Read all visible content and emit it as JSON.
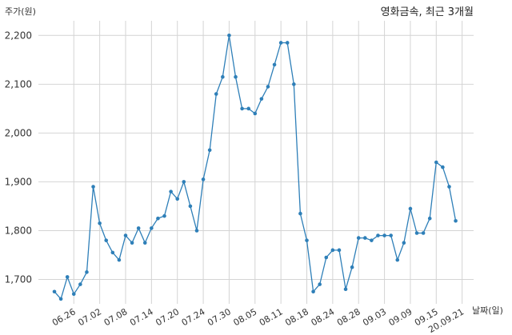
{
  "chart_data": {
    "type": "line",
    "title": "영화금속, 최근 3개월",
    "xlabel": "날짜(일)",
    "ylabel": "주가(원)",
    "ylim": [
      1650,
      2230
    ],
    "grid": true,
    "color": "#2e7fb8",
    "y_ticks": [
      1700,
      1800,
      1900,
      2000,
      2100,
      2200
    ],
    "y_tick_labels": [
      "1,700",
      "1,800",
      "1,900",
      "2,000",
      "2,100",
      "2,200"
    ],
    "x_tick_labels": [
      "06.26",
      "07.02",
      "07.08",
      "07.14",
      "07.20",
      "07.24",
      "07.30",
      "08.05",
      "08.11",
      "08.18",
      "08.24",
      "08.28",
      "09.03",
      "09.09",
      "09.15",
      "20.09.21"
    ],
    "x_tick_indices": [
      3,
      7,
      11,
      15,
      19,
      23,
      27,
      31,
      35,
      39,
      43,
      47,
      51,
      55,
      59,
      63
    ],
    "values": [
      1675,
      1660,
      1705,
      1670,
      1690,
      1715,
      1890,
      1815,
      1780,
      1755,
      1740,
      1790,
      1775,
      1805,
      1775,
      1805,
      1825,
      1830,
      1880,
      1865,
      1900,
      1850,
      1800,
      1905,
      1965,
      2080,
      2115,
      2200,
      2115,
      2050,
      2050,
      2040,
      2070,
      2095,
      2140,
      2185,
      2185,
      2100,
      1835,
      1780,
      1675,
      1690,
      1745,
      1760,
      1760,
      1680,
      1725,
      1785,
      1785,
      1780,
      1790,
      1790,
      1790,
      1740,
      1775,
      1845,
      1795,
      1795,
      1825,
      1940,
      1930,
      1890,
      1820
    ]
  }
}
